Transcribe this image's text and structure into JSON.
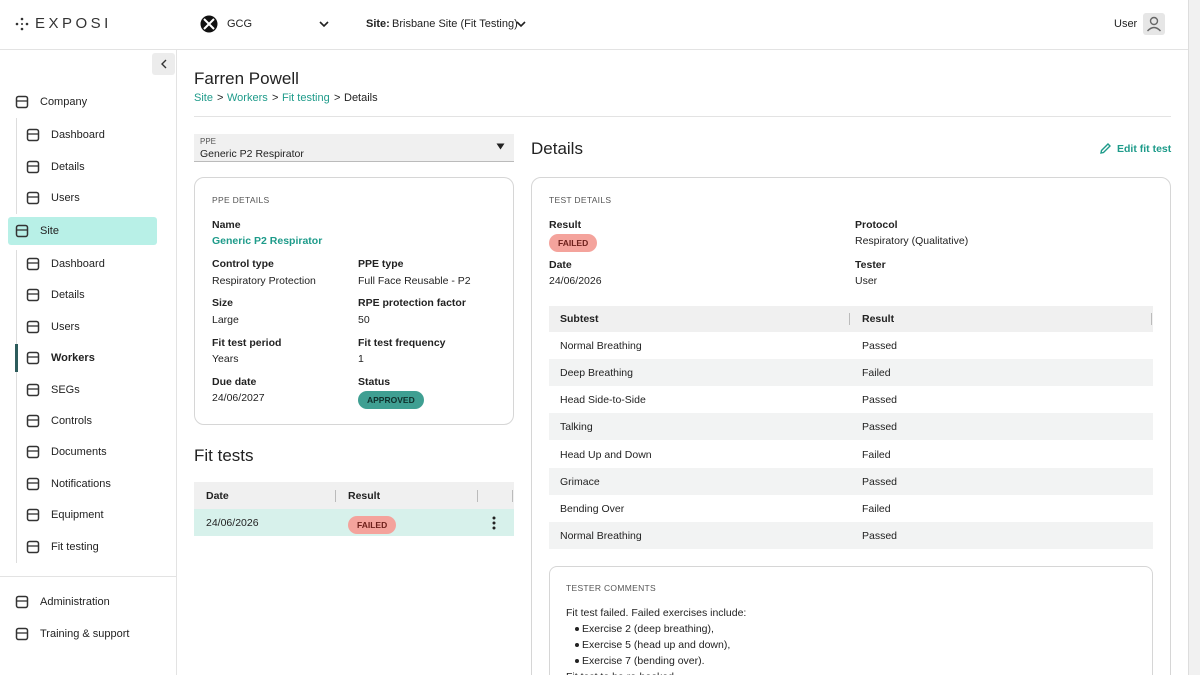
{
  "header": {
    "logo": "EXPOSI",
    "organisation": "GCG",
    "site_label": "Site:",
    "site": "Brisbane Site (Fit Testing)",
    "user": "User"
  },
  "sidebar": {
    "company": "Company",
    "company_items": [
      "Dashboard",
      "Details",
      "Users"
    ],
    "site": "Site",
    "site_items": [
      "Dashboard",
      "Details",
      "Users",
      "Workers",
      "SEGs",
      "Controls",
      "Documents",
      "Notifications",
      "Equipment",
      "Fit testing"
    ],
    "footer_items": [
      "Administration",
      "Training & support"
    ]
  },
  "page": {
    "title": "Farren Powell",
    "breadcrumb": [
      "Site",
      "Workers",
      "Fit testing",
      "Details"
    ],
    "breadcrumb_separator": ">"
  },
  "ppe_select": {
    "label": "PPE",
    "value": "Generic P2 Respirator"
  },
  "ppe_details": {
    "heading": "PPE DETAILS",
    "name_label": "Name",
    "name": "Generic P2 Respirator",
    "fields": [
      {
        "label": "Control type",
        "value": "Respiratory Protection"
      },
      {
        "label": "PPE type",
        "value": "Full Face Reusable - P2"
      },
      {
        "label": "Size",
        "value": "Large"
      },
      {
        "label": "RPE protection factor",
        "value": "50"
      },
      {
        "label": "Fit test period",
        "value": "Years"
      },
      {
        "label": "Fit test frequency",
        "value": "1"
      },
      {
        "label": "Due date",
        "value": "24/06/2027"
      },
      {
        "label": "Status",
        "value": "APPROVED"
      }
    ]
  },
  "fit_tests": {
    "title": "Fit tests",
    "columns": [
      "Date",
      "Result"
    ],
    "rows": [
      [
        "24/06/2026",
        "FAILED"
      ]
    ]
  },
  "details": {
    "title": "Details",
    "edit_action": "Edit fit test",
    "heading": "TEST DETAILS",
    "result_label": "Result",
    "result": "FAILED",
    "protocol_label": "Protocol",
    "protocol": "Respiratory (Qualitative)",
    "date_label": "Date",
    "date": "24/06/2026",
    "tester_label": "Tester",
    "tester": "User"
  },
  "subtests": {
    "columns": [
      "Subtest",
      "Result"
    ],
    "rows": [
      [
        "Normal Breathing",
        "Passed"
      ],
      [
        "Deep Breathing",
        "Failed"
      ],
      [
        "Head Side-to-Side",
        "Passed"
      ],
      [
        "Talking",
        "Passed"
      ],
      [
        "Head Up and Down",
        "Failed"
      ],
      [
        "Grimace",
        "Passed"
      ],
      [
        "Bending Over",
        "Failed"
      ],
      [
        "Normal Breathing",
        "Passed"
      ]
    ]
  },
  "comments": {
    "heading": "TESTER COMMENTS",
    "intro": "Fit test failed. Failed exercises include:",
    "items": [
      "Exercise 2 (deep breathing),",
      "Exercise 5 (head up and down),",
      "Exercise 7 (bending over)."
    ],
    "closing": "Fit test to be re-booked"
  }
}
